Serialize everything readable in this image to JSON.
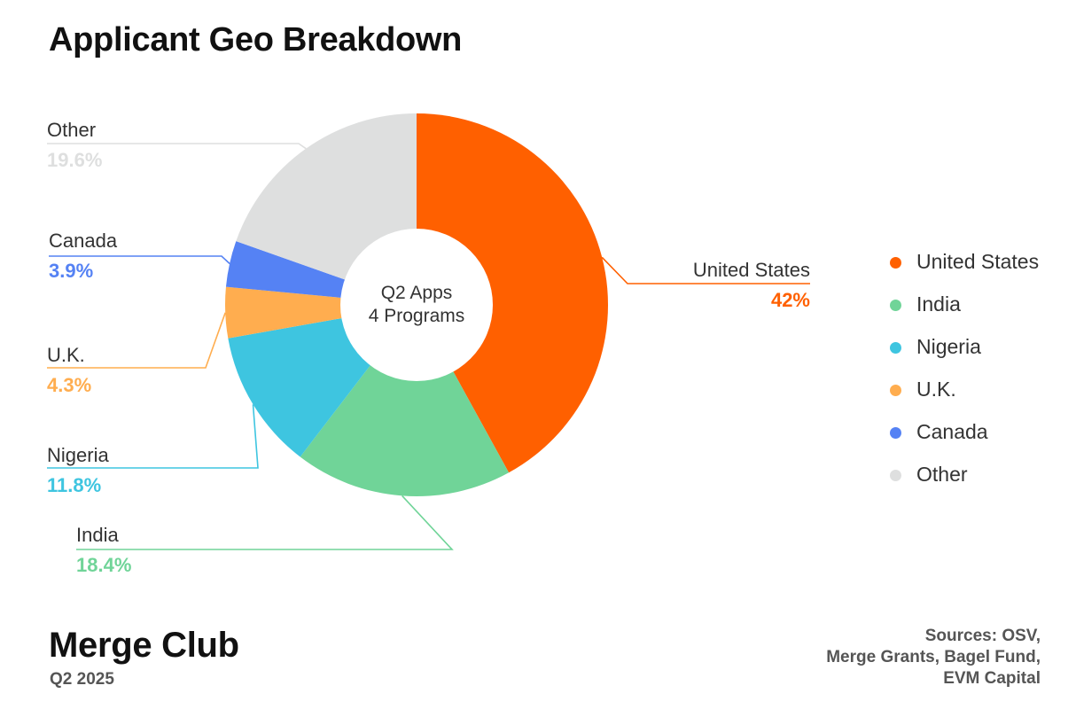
{
  "header": {
    "title": "Applicant Geo Breakdown"
  },
  "center_label": {
    "line1": "Q2 Apps",
    "line2": "4 Programs"
  },
  "chart_data": {
    "type": "pie",
    "title": "Applicant Geo Breakdown",
    "donut": true,
    "start_angle_deg": 0,
    "direction": "clockwise",
    "legend_position": "right",
    "slices": [
      {
        "label": "United States",
        "value": 42,
        "value_label": "42%",
        "color": "#FF6000"
      },
      {
        "label": "India",
        "value": 18.4,
        "value_label": "18.4%",
        "color": "#70D498"
      },
      {
        "label": "Nigeria",
        "value": 11.8,
        "value_label": "11.8%",
        "color": "#3EC5E0"
      },
      {
        "label": "U.K.",
        "value": 4.3,
        "value_label": "4.3%",
        "color": "#FFAD4F"
      },
      {
        "label": "Canada",
        "value": 3.9,
        "value_label": "3.9%",
        "color": "#5582F4"
      },
      {
        "label": "Other",
        "value": 19.6,
        "value_label": "19.6%",
        "color": "#DEDFDF"
      }
    ]
  },
  "footer": {
    "brand": "Merge Club",
    "period": "Q2 2025",
    "sources": [
      "Sources: OSV,",
      "Merge Grants, Bagel Fund,",
      "EVM Capital"
    ]
  }
}
